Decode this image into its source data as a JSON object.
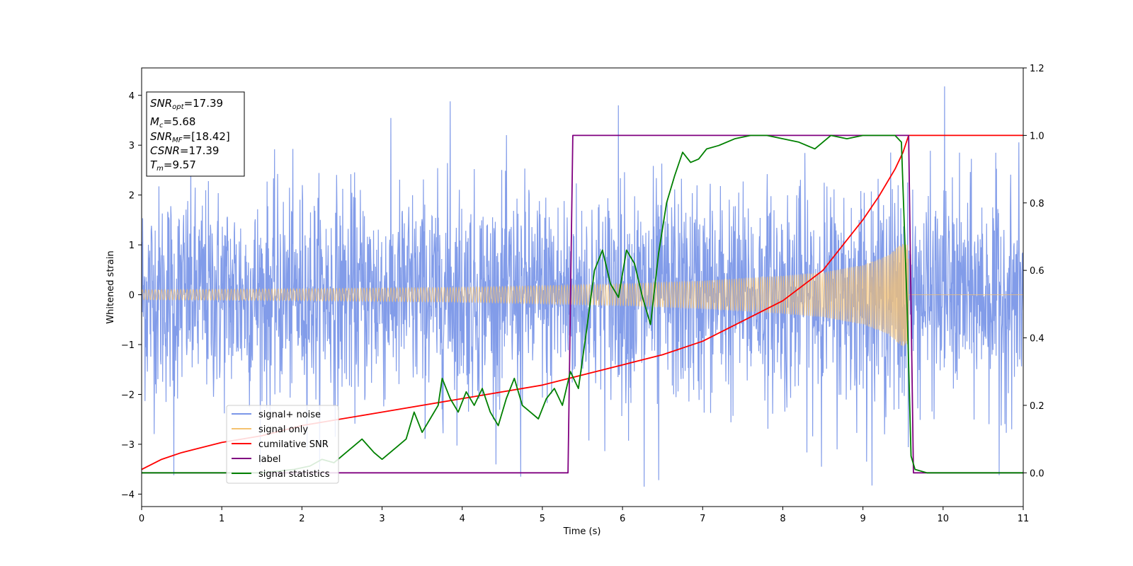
{
  "chart_data": {
    "type": "line",
    "xlabel": "Time (s)",
    "ylabel": "Whitened strain",
    "xlim": [
      0,
      11
    ],
    "ylim_left": [
      -4.25,
      4.55
    ],
    "ylim_right": [
      -0.1,
      1.2
    ],
    "xticks": [
      "0",
      "1",
      "2",
      "3",
      "4",
      "5",
      "6",
      "7",
      "8",
      "9",
      "10",
      "11"
    ],
    "yticks_left": [
      "−4",
      "−3",
      "−2",
      "−1",
      "0",
      "1",
      "2",
      "3",
      "4"
    ],
    "yticks_right": [
      "0.0",
      "0.2",
      "0.4",
      "0.6",
      "0.8",
      "1.0",
      "1.2"
    ],
    "info_box": {
      "snr_opt": {
        "base": "SNR",
        "sub": "opt",
        "value": "=17.39"
      },
      "mc": {
        "base": "M",
        "sub": "c",
        "value": "=5.68"
      },
      "snr_mf": {
        "base": "SNR",
        "sub": "MF",
        "value": "=[18.42]"
      },
      "csnr": {
        "base": "CSNR",
        "value": "=17.39"
      },
      "tm": {
        "base": "T",
        "sub": "m",
        "value": "=9.57"
      }
    },
    "legend": {
      "placement": "lower-left",
      "entries": [
        {
          "label": "signal+ noise",
          "color": "#7b97e8"
        },
        {
          "label": "signal only",
          "color": "#f5c270"
        },
        {
          "label": "cumilative SNR",
          "color": "#ff0000"
        },
        {
          "label": "label",
          "color": "#800080"
        },
        {
          "label": "signal statistics",
          "color": "#008000"
        }
      ]
    },
    "series": [
      {
        "name": "signal+ noise",
        "axis": "left",
        "color": "#7b97e8",
        "description_range": [
          0,
          11
        ],
        "envelope_typical": 2.6,
        "extremes": [
          [
            3.85,
            3.88
          ],
          [
            5.95,
            3.8
          ],
          [
            10.02,
            4.18
          ],
          [
            6.27,
            -3.85
          ],
          [
            6.45,
            -3.72
          ],
          [
            4.73,
            -3.65
          ],
          [
            0.4,
            -3.62
          ],
          [
            10.7,
            -3.62
          ]
        ]
      },
      {
        "name": "signal only",
        "axis": "left",
        "color": "#f5c270",
        "t_merger": 9.57,
        "amplitude_points": [
          [
            0,
            0.1
          ],
          [
            2,
            0.12
          ],
          [
            4,
            0.15
          ],
          [
            5,
            0.18
          ],
          [
            6,
            0.22
          ],
          [
            7,
            0.28
          ],
          [
            8,
            0.38
          ],
          [
            8.5,
            0.45
          ],
          [
            9,
            0.6
          ],
          [
            9.3,
            0.78
          ],
          [
            9.5,
            1.05
          ],
          [
            9.57,
            1.0
          ]
        ]
      },
      {
        "name": "cumilative SNR",
        "axis": "right",
        "color": "#ff0000",
        "x": [
          0,
          0.25,
          0.5,
          1,
          1.5,
          2,
          3,
          4,
          5,
          5.5,
          6,
          6.5,
          7,
          7.5,
          8,
          8.5,
          9,
          9.2,
          9.4,
          9.5,
          9.57,
          11
        ],
        "y": [
          0.01,
          0.04,
          0.06,
          0.09,
          0.11,
          0.14,
          0.18,
          0.22,
          0.26,
          0.29,
          0.32,
          0.35,
          0.39,
          0.45,
          0.51,
          0.6,
          0.75,
          0.82,
          0.9,
          0.95,
          1.0,
          1.0
        ]
      },
      {
        "name": "label",
        "axis": "right",
        "color": "#800080",
        "x": [
          0,
          5.32,
          5.38,
          9.57,
          9.63,
          11
        ],
        "y": [
          0,
          0,
          1,
          1,
          0,
          0
        ]
      },
      {
        "name": "signal statistics",
        "axis": "right",
        "color": "#008000",
        "x": [
          0,
          0.5,
          1,
          1.5,
          1.9,
          2.1,
          2.25,
          2.4,
          2.55,
          2.65,
          2.75,
          2.9,
          3.0,
          3.1,
          3.2,
          3.3,
          3.4,
          3.5,
          3.6,
          3.7,
          3.75,
          3.85,
          3.95,
          4.05,
          4.15,
          4.25,
          4.35,
          4.45,
          4.55,
          4.65,
          4.75,
          4.85,
          4.95,
          5.05,
          5.15,
          5.25,
          5.35,
          5.45,
          5.55,
          5.65,
          5.75,
          5.85,
          5.95,
          6.05,
          6.15,
          6.25,
          6.35,
          6.45,
          6.55,
          6.65,
          6.75,
          6.85,
          6.95,
          7.05,
          7.2,
          7.4,
          7.6,
          7.8,
          8.0,
          8.2,
          8.4,
          8.6,
          8.8,
          9.0,
          9.2,
          9.4,
          9.48,
          9.55,
          9.6,
          9.65,
          9.8,
          11
        ],
        "y": [
          0.0,
          0.0,
          0.0,
          0.0,
          0.01,
          0.02,
          0.04,
          0.03,
          0.06,
          0.08,
          0.1,
          0.06,
          0.04,
          0.06,
          0.08,
          0.1,
          0.18,
          0.12,
          0.16,
          0.2,
          0.28,
          0.22,
          0.18,
          0.24,
          0.2,
          0.25,
          0.18,
          0.14,
          0.22,
          0.28,
          0.2,
          0.18,
          0.16,
          0.22,
          0.25,
          0.2,
          0.3,
          0.25,
          0.42,
          0.6,
          0.66,
          0.56,
          0.52,
          0.66,
          0.62,
          0.52,
          0.44,
          0.65,
          0.8,
          0.88,
          0.95,
          0.92,
          0.93,
          0.96,
          0.97,
          0.99,
          1.0,
          1.0,
          0.99,
          0.98,
          0.96,
          1.0,
          0.99,
          1.0,
          1.0,
          1.0,
          0.98,
          0.5,
          0.05,
          0.01,
          0.0,
          0.0
        ]
      }
    ]
  }
}
